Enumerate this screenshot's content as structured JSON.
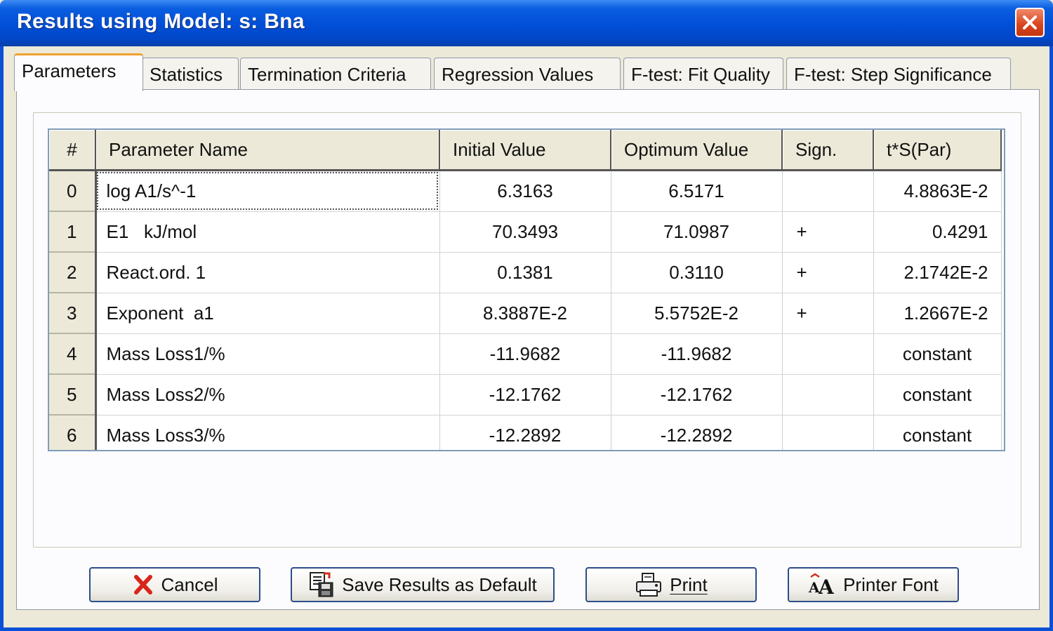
{
  "window": {
    "title": "Results using Model: s:  Bna"
  },
  "tabs": [
    {
      "label": "Parameters",
      "active": true
    },
    {
      "label": "Statistics",
      "active": false
    },
    {
      "label": "Termination Criteria",
      "active": false
    },
    {
      "label": "Regression Values",
      "active": false
    },
    {
      "label": "F-test: Fit Quality",
      "active": false
    },
    {
      "label": "F-test: Step Significance",
      "active": false
    }
  ],
  "table": {
    "headers": [
      "#",
      "Parameter Name",
      "Initial Value",
      "Optimum Value",
      "Sign.",
      "t*S(Par)"
    ],
    "rows": [
      {
        "num": "0",
        "name": "log A1/s^-1",
        "initial": "6.3163",
        "optimum": "6.5171",
        "sign": "",
        "tspar": "4.8863E-2"
      },
      {
        "num": "1",
        "name": "E1   kJ/mol",
        "initial": "70.3493",
        "optimum": "71.0987",
        "sign": "+",
        "tspar": "0.4291"
      },
      {
        "num": "2",
        "name": "React.ord. 1",
        "initial": "0.1381",
        "optimum": "0.3110",
        "sign": "+",
        "tspar": "2.1742E-2"
      },
      {
        "num": "3",
        "name": "Exponent  a1",
        "initial": "8.3887E-2",
        "optimum": "5.5752E-2",
        "sign": "+",
        "tspar": "1.2667E-2"
      },
      {
        "num": "4",
        "name": "Mass Loss1/%",
        "initial": "-11.9682",
        "optimum": "-11.9682",
        "sign": "",
        "tspar": "constant"
      },
      {
        "num": "5",
        "name": "Mass Loss2/%",
        "initial": "-12.1762",
        "optimum": "-12.1762",
        "sign": "",
        "tspar": "constant"
      },
      {
        "num": "6",
        "name": "Mass Loss3/%",
        "initial": "-12.2892",
        "optimum": "-12.2892",
        "sign": "",
        "tspar": "constant"
      }
    ]
  },
  "buttons": {
    "cancel": {
      "label": "Cancel",
      "icon": "red-x-icon"
    },
    "save_default": {
      "label": "Save Results as Default",
      "icon": "save-document-icon"
    },
    "print": {
      "label": "Print",
      "icon": "printer-icon"
    },
    "printer_font": {
      "label": "Printer Font",
      "icon": "font-size-icon"
    }
  },
  "colors": {
    "titlebar": "#0250d8",
    "active_tab_accent": "#f0a030",
    "cancel_x": "#d8261b"
  }
}
